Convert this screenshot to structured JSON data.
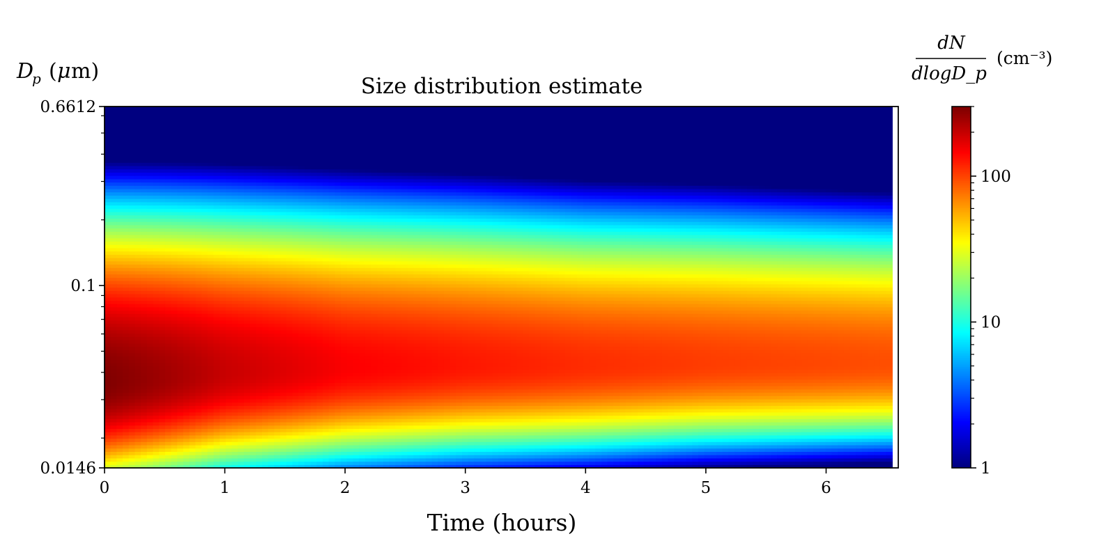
{
  "chart_data": {
    "type": "heatmap",
    "title": "Size distribution estimate",
    "xlabel": "Time (hours)",
    "ylabel": "D_p (μm)",
    "xlim": [
      0,
      6.6
    ],
    "ylim": [
      0.0146,
      0.6612
    ],
    "yscale": "log",
    "x_ticks": [
      "0",
      "1",
      "2",
      "3",
      "4",
      "5",
      "6"
    ],
    "y_ticks": [
      "0.0146",
      "0.1",
      "0.6612"
    ],
    "data_end_hours": 6.55,
    "colormap": "jet",
    "colorbar": {
      "label_numerator": "dN",
      "label_denominator": "dlogD_p",
      "label_unit": "(cm⁻³)",
      "scale": "log",
      "range": [
        1,
        300
      ],
      "ticks": [
        "1",
        "10",
        "100"
      ]
    },
    "mode_diameter_um": [
      {
        "time_h": 0,
        "dp": 0.036,
        "peak": 300
      },
      {
        "time_h": 1,
        "dp": 0.04,
        "peak": 200
      },
      {
        "time_h": 2,
        "dp": 0.042,
        "peak": 150
      },
      {
        "time_h": 3,
        "dp": 0.043,
        "peak": 130
      },
      {
        "time_h": 4,
        "dp": 0.043,
        "peak": 115
      },
      {
        "time_h": 5,
        "dp": 0.044,
        "peak": 105
      },
      {
        "time_h": 6.5,
        "dp": 0.044,
        "peak": 95
      }
    ]
  }
}
